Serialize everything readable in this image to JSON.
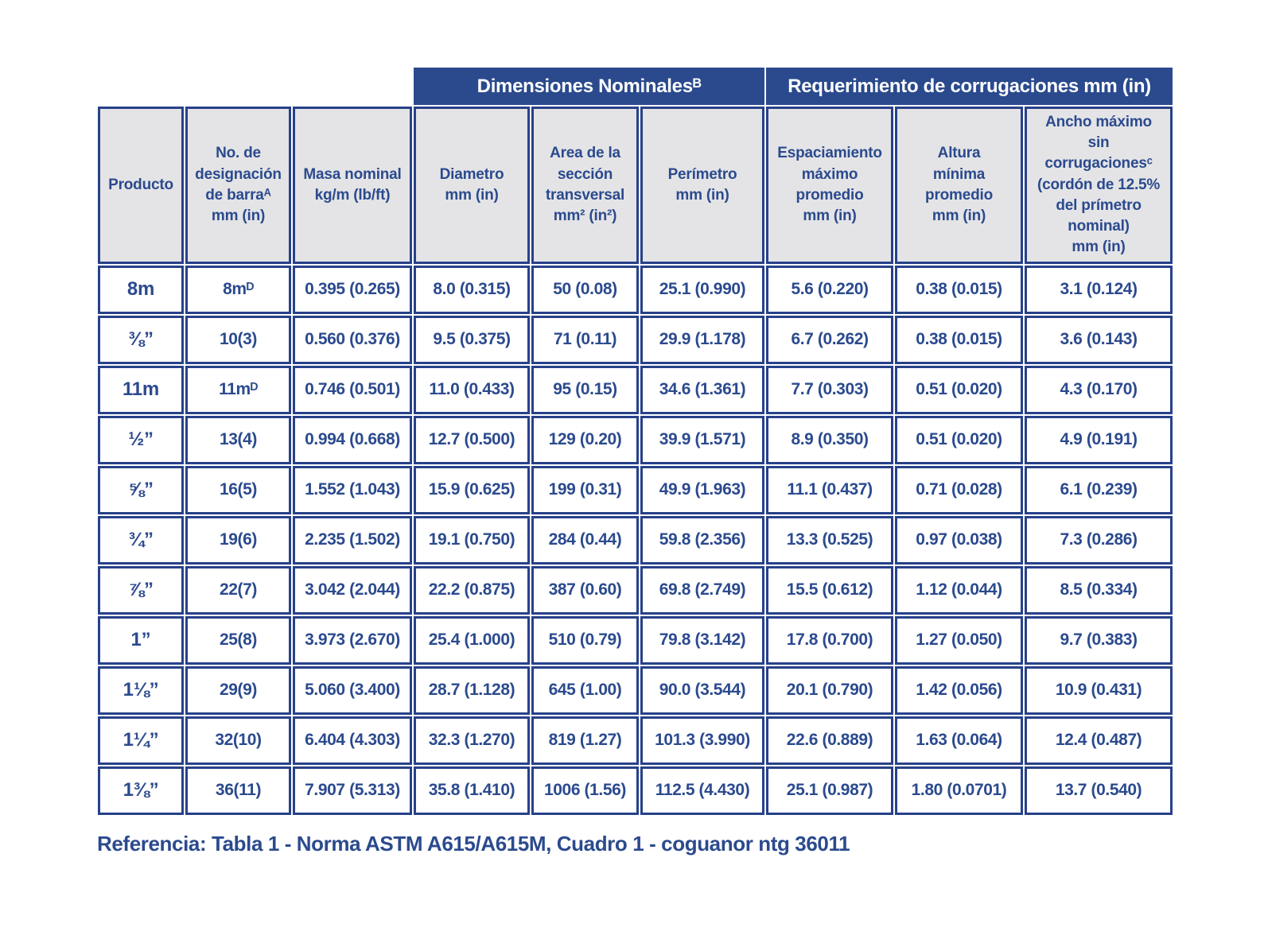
{
  "banner": {
    "dimensiones": "Dimensiones Nominalesᴮ",
    "requerimiento": "Requerimiento de corrugaciones mm (in)"
  },
  "columns": [
    {
      "key": "producto",
      "label": "Producto"
    },
    {
      "key": "designacion",
      "label": "No. de\ndesignación\nde barraᴬ\nmm (in)"
    },
    {
      "key": "masa-nominal",
      "label": "Masa nominal\nkg/m (lb/ft)"
    },
    {
      "key": "diametro",
      "label": "Diametro\nmm (in)"
    },
    {
      "key": "area-seccion",
      "label": "Area de la\nsección\ntransversal\nmm² (in²)"
    },
    {
      "key": "perimetro",
      "label": "Perímetro\nmm (in)"
    },
    {
      "key": "espaciamiento",
      "label": "Espaciamiento\nmáximo\npromedio\nmm (in)"
    },
    {
      "key": "altura",
      "label": "Altura\nmínima\npromedio\nmm (in)"
    },
    {
      "key": "ancho",
      "label": "Ancho máximo\nsin\ncorrugacionesᶜ\n(cordón de 12.5%\ndel prímetro\nnominal)\nmm (in)"
    }
  ],
  "rows": [
    [
      "8m",
      "8mᴰ",
      "0.395 (0.265)",
      "8.0 (0.315)",
      "50 (0.08)",
      "25.1 (0.990)",
      "5.6 (0.220)",
      "0.38 (0.015)",
      "3.1 (0.124)"
    ],
    [
      "⅜”",
      "10(3)",
      "0.560 (0.376)",
      "9.5 (0.375)",
      "71 (0.11)",
      "29.9 (1.178)",
      "6.7 (0.262)",
      "0.38 (0.015)",
      "3.6 (0.143)"
    ],
    [
      "11m",
      "11mᴰ",
      "0.746 (0.501)",
      "11.0 (0.433)",
      "95 (0.15)",
      "34.6 (1.361)",
      "7.7 (0.303)",
      "0.51 (0.020)",
      "4.3 (0.170)"
    ],
    [
      "½”",
      "13(4)",
      "0.994 (0.668)",
      "12.7 (0.500)",
      "129 (0.20)",
      "39.9 (1.571)",
      "8.9 (0.350)",
      "0.51 (0.020)",
      "4.9 (0.191)"
    ],
    [
      "⅝”",
      "16(5)",
      "1.552 (1.043)",
      "15.9 (0.625)",
      "199 (0.31)",
      "49.9 (1.963)",
      "11.1 (0.437)",
      "0.71 (0.028)",
      "6.1 (0.239)"
    ],
    [
      "¾”",
      "19(6)",
      "2.235 (1.502)",
      "19.1 (0.750)",
      "284 (0.44)",
      "59.8 (2.356)",
      "13.3 (0.525)",
      "0.97 (0.038)",
      "7.3 (0.286)"
    ],
    [
      "⅞”",
      "22(7)",
      "3.042 (2.044)",
      "22.2 (0.875)",
      "387 (0.60)",
      "69.8 (2.749)",
      "15.5 (0.612)",
      "1.12 (0.044)",
      "8.5 (0.334)"
    ],
    [
      "1”",
      "25(8)",
      "3.973 (2.670)",
      "25.4 (1.000)",
      "510 (0.79)",
      "79.8 (3.142)",
      "17.8 (0.700)",
      "1.27 (0.050)",
      "9.7 (0.383)"
    ],
    [
      "1⅛”",
      "29(9)",
      "5.060 (3.400)",
      "28.7 (1.128)",
      "645 (1.00)",
      "90.0 (3.544)",
      "20.1 (0.790)",
      "1.42 (0.056)",
      "10.9 (0.431)"
    ],
    [
      "1¼”",
      "32(10)",
      "6.404 (4.303)",
      "32.3 (1.270)",
      "819 (1.27)",
      "101.3 (3.990)",
      "22.6 (0.889)",
      "1.63 (0.064)",
      "12.4 (0.487)"
    ],
    [
      "1⅜”",
      "36(11)",
      "7.907 (5.313)",
      "35.8 (1.410)",
      "1006 (1.56)",
      "112.5 (4.430)",
      "25.1 (0.987)",
      "1.80 (0.0701)",
      "13.7 (0.540)"
    ]
  ],
  "footer": {
    "reference": "Referencia: Tabla 1 - Norma ASTM A615/A615M, Cuadro 1 - coguanor ntg 36011"
  },
  "colors": {
    "banner_bg": "#2a4a8d",
    "border_navy": "#27418a",
    "text_navy": "#2b4a8e",
    "header_cell_bg": "#e4e4e6",
    "banner_text": "#ffffff",
    "page_bg": "#ffffff"
  }
}
